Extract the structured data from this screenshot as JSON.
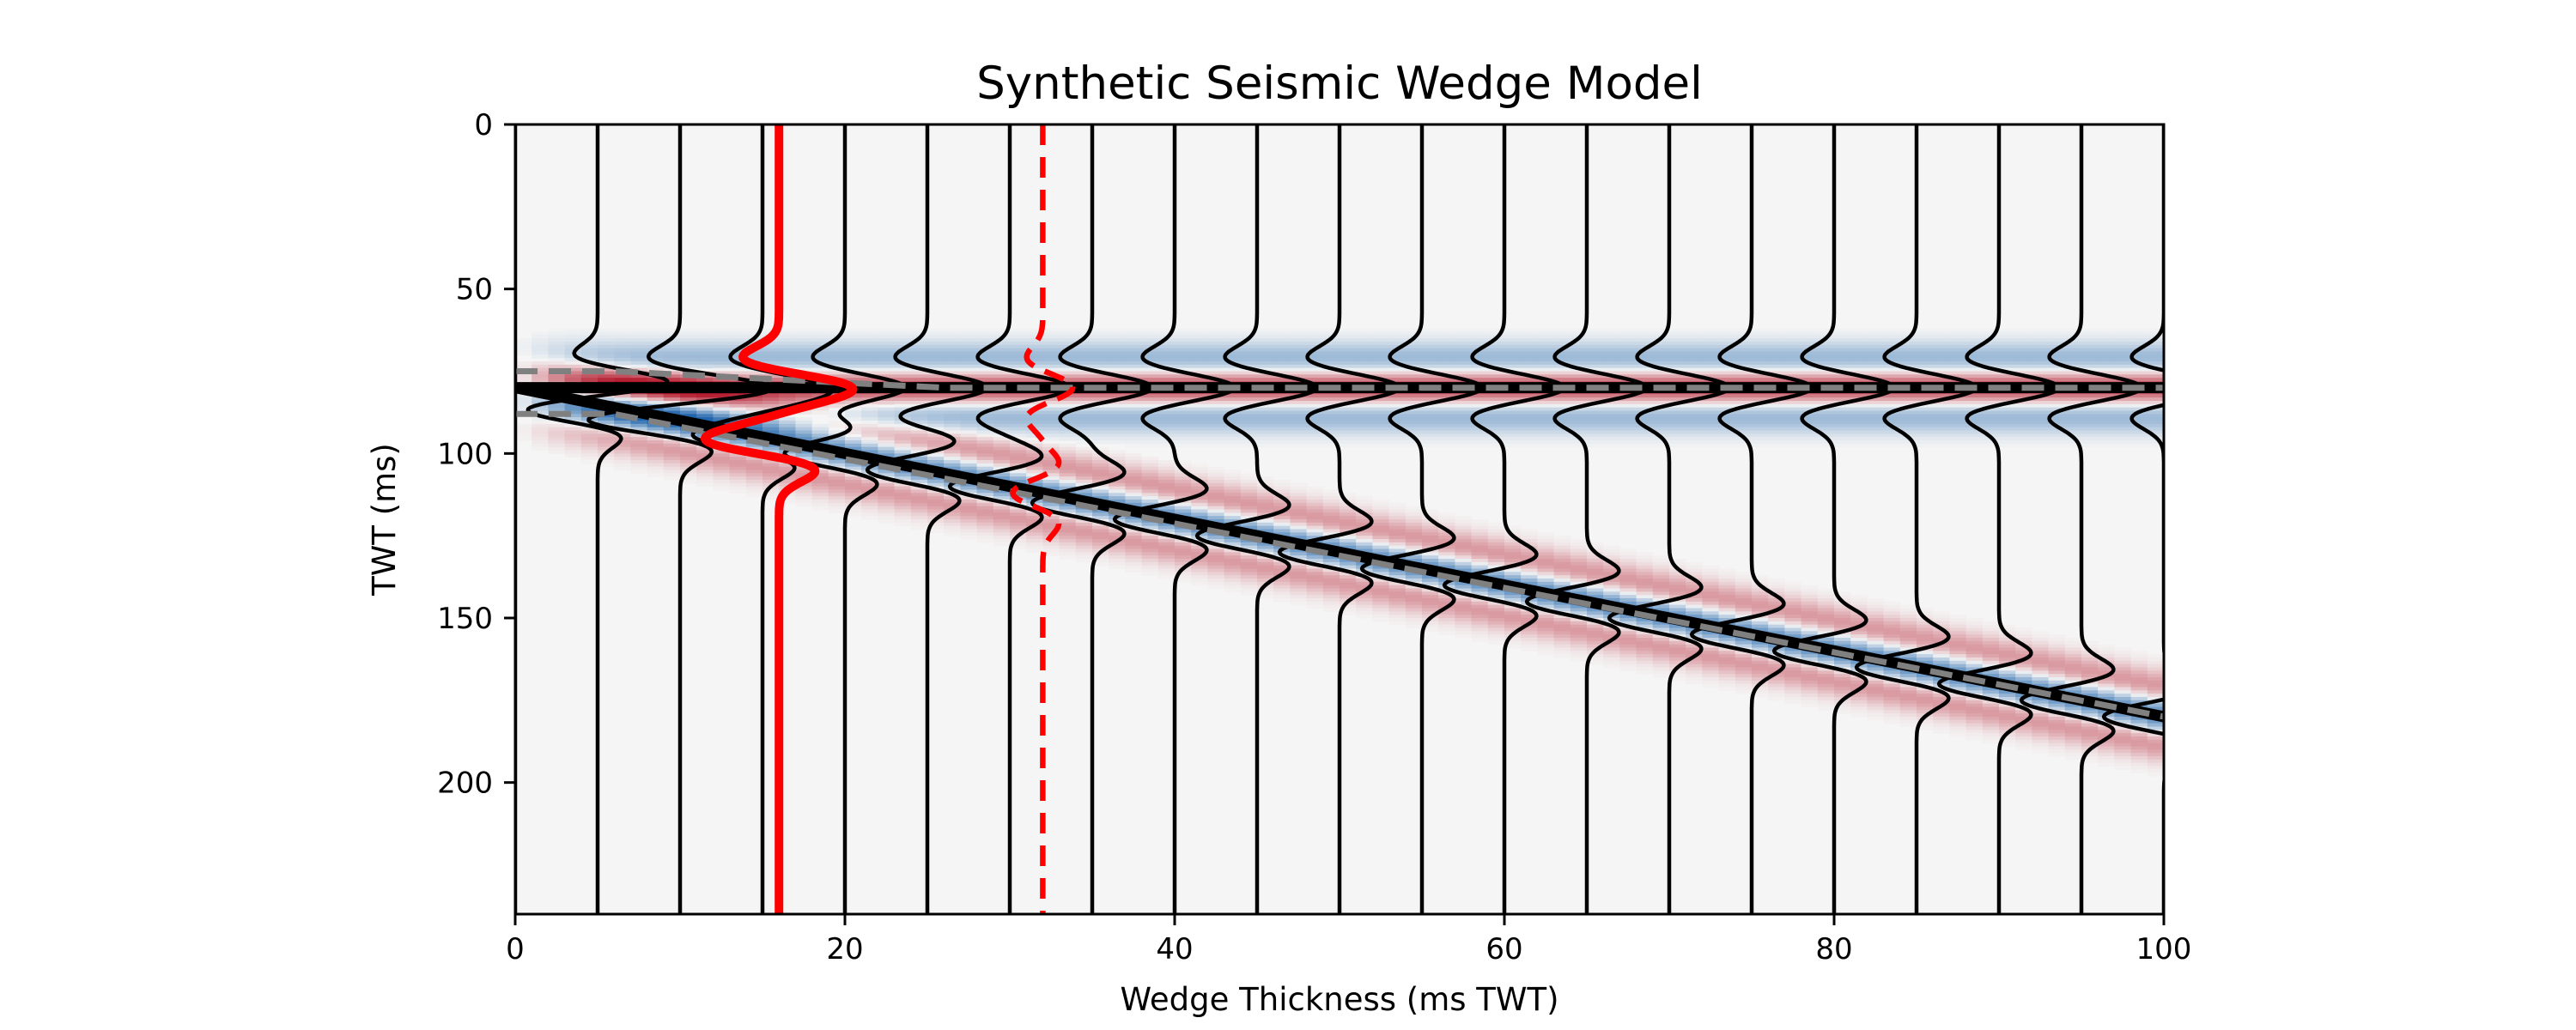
{
  "chart_data": {
    "type": "heatmap",
    "title": "Synthetic Seismic Wedge Model",
    "xlabel": "Wedge Thickness (ms TWT)",
    "ylabel": "TWT (ms)",
    "xlim": [
      0,
      100
    ],
    "ylim": [
      240,
      0
    ],
    "x_ticks": [
      0,
      20,
      40,
      60,
      80,
      100
    ],
    "y_ticks": [
      0,
      50,
      100,
      150,
      200
    ],
    "grid": false,
    "legend": "none",
    "colormap": {
      "negative": "#2166ac",
      "neutral": "#f5f5f5",
      "positive": "#b2182b"
    },
    "wavelet": {
      "type": "ricker",
      "peak_half_width_ms": 3.8,
      "wavelength_ms": 8.5
    },
    "horizons": {
      "top_twt_ms": 80,
      "base_twt_ms_at_x0": 80,
      "base_twt_ms_at_x100": 180,
      "top_polarity": 1,
      "base_polarity": -1,
      "line_color": "#000000",
      "dashed_overlay_color": "#808080",
      "dashed_top_points": [
        [
          0,
          75
        ],
        [
          6,
          75
        ],
        [
          26,
          80
        ],
        [
          100,
          80
        ]
      ],
      "dashed_base_points": [
        [
          0,
          88
        ],
        [
          6,
          88
        ],
        [
          100,
          180
        ]
      ]
    },
    "traces": {
      "x_positions": [
        0,
        5,
        10,
        15,
        20,
        25,
        30,
        35,
        40,
        45,
        50,
        55,
        60,
        65,
        70,
        75,
        80,
        85,
        90,
        95,
        100
      ],
      "amplitude_scale_units": 4,
      "color": "#000000"
    },
    "highlighted_traces": [
      {
        "x": 16,
        "color": "#ff0000",
        "style": "solid",
        "amplitude_scale_units": 4.5
      },
      {
        "x": 32,
        "color": "#ff0000",
        "style": "dashed",
        "amplitude_scale_units": 2
      }
    ],
    "highlight_trace_twt_range": [
      0,
      240
    ]
  }
}
